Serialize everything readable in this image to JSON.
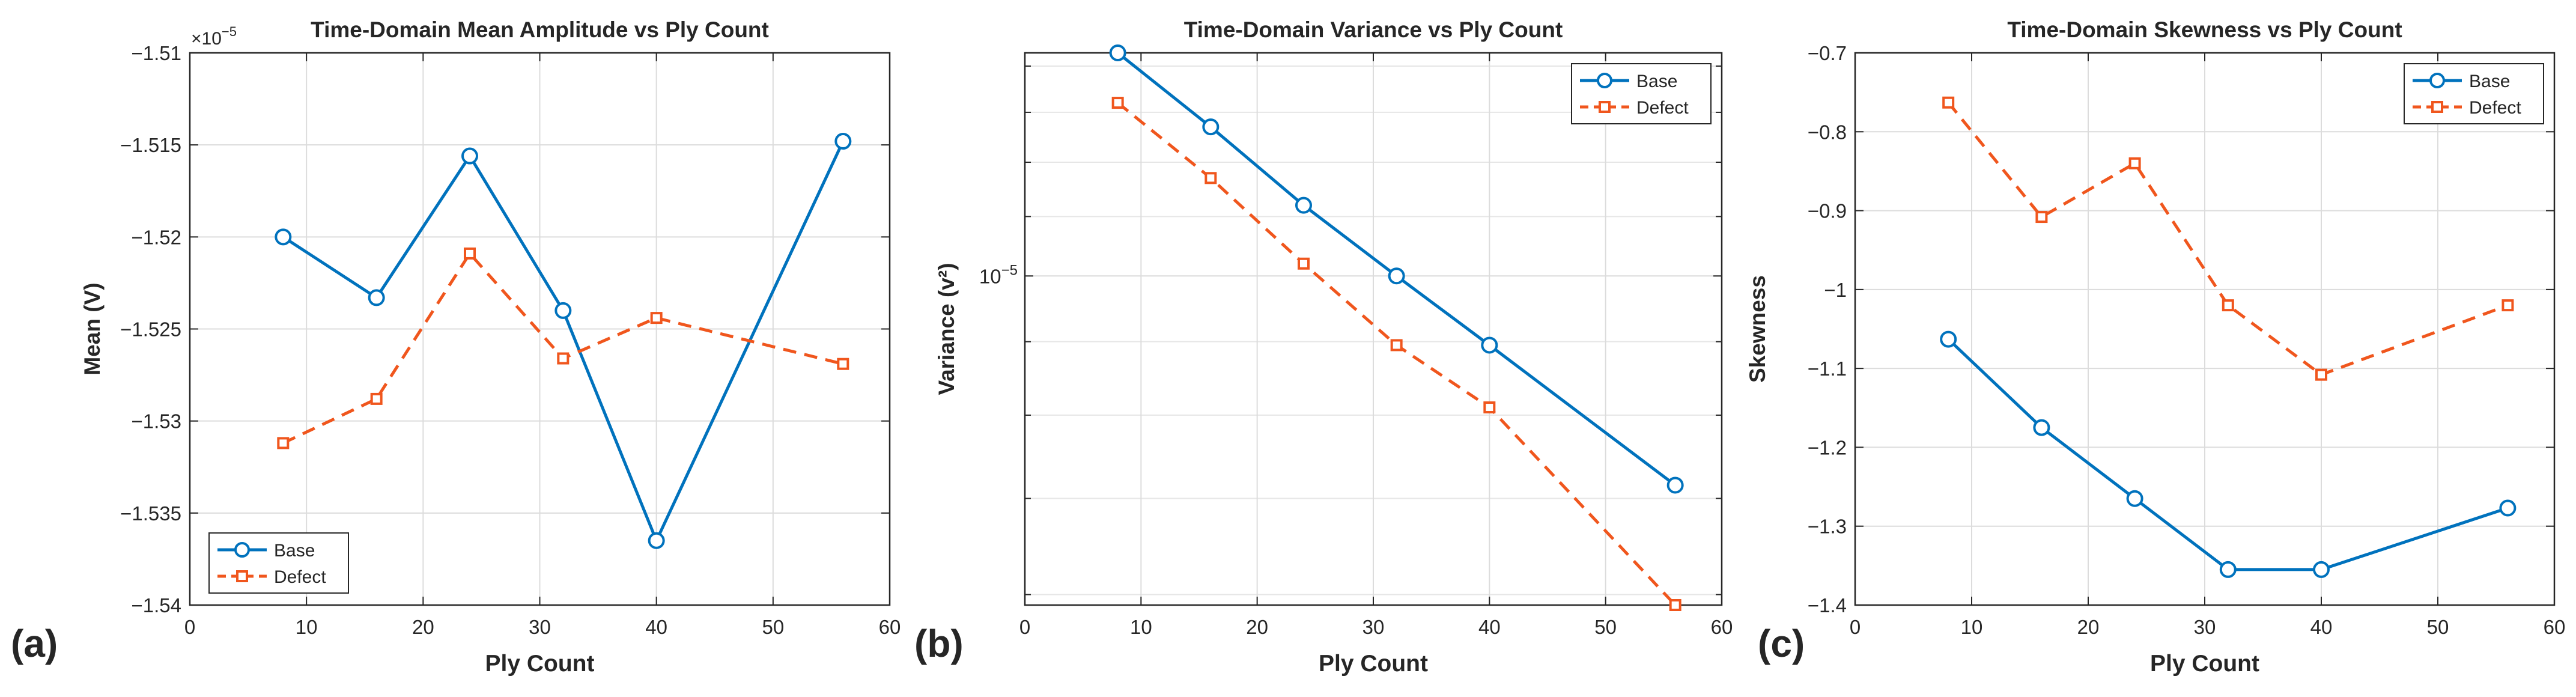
{
  "panel_labels": [
    "(a)",
    "(b)",
    "(c)"
  ],
  "chart_data": [
    {
      "type": "line",
      "title": "Time-Domain Mean Amplitude vs Ply Count",
      "xlabel": "Ply Count",
      "ylabel": "Mean (V)",
      "y_multiplier_label": "×10",
      "y_multiplier_exponent": "-5",
      "xlim": [
        0,
        60
      ],
      "ylim": [
        -1.54,
        -1.51
      ],
      "y_scale": "linear",
      "grid": true,
      "legend_position": "bottom-left",
      "x_ticks": [
        0,
        10,
        20,
        30,
        40,
        50,
        60
      ],
      "x_tick_labels": [
        "0",
        "10",
        "20",
        "30",
        "40",
        "50",
        "60"
      ],
      "y_ticks": [
        -1.51,
        -1.515,
        -1.52,
        -1.525,
        -1.53,
        -1.535,
        -1.54
      ],
      "y_tick_labels": [
        "-1.51",
        "-1.515",
        "-1.52",
        "-1.525",
        "-1.53",
        "-1.535",
        "-1.54"
      ],
      "series": [
        {
          "name": "Base",
          "color": "#0072BD",
          "style": "solid",
          "marker": "circle",
          "x": [
            8,
            16,
            24,
            32,
            40,
            56
          ],
          "values": [
            -1.52,
            -1.5233,
            -1.5156,
            -1.524,
            -1.5365,
            -1.5148
          ]
        },
        {
          "name": "Defect",
          "color": "#F0561D",
          "style": "dashed",
          "marker": "square",
          "x": [
            8,
            16,
            24,
            32,
            40,
            56
          ],
          "values": [
            -1.5312,
            -1.5288,
            -1.5209,
            -1.5266,
            -1.5244,
            -1.5269
          ]
        }
      ]
    },
    {
      "type": "line",
      "title": "Time-Domain Variance vs Ply Count",
      "xlabel": "Ply Count",
      "ylabel": "Variance (v²)",
      "xlim": [
        0,
        60
      ],
      "ylim": [
        5.9e-06,
        1.43e-05
      ],
      "y_scale": "log",
      "grid": true,
      "legend_position": "top-right",
      "x_ticks": [
        0,
        10,
        20,
        30,
        40,
        50,
        60
      ],
      "x_tick_labels": [
        "0",
        "10",
        "20",
        "30",
        "40",
        "50",
        "60"
      ],
      "y_ticks": [
        1e-05
      ],
      "y_tick_base": "10",
      "y_tick_exponent": "-5",
      "y_minor_ticks": [
        6e-06,
        7e-06,
        8e-06,
        9e-06,
        1.1e-05,
        1.2e-05,
        1.3e-05,
        1.4e-05
      ],
      "series": [
        {
          "name": "Base",
          "color": "#0072BD",
          "style": "solid",
          "marker": "circle",
          "x": [
            8,
            16,
            24,
            32,
            40,
            56
          ],
          "values": [
            1.43e-05,
            1.27e-05,
            1.12e-05,
            1e-05,
            8.95e-06,
            7.15e-06
          ]
        },
        {
          "name": "Defect",
          "color": "#F0561D",
          "style": "dashed",
          "marker": "square",
          "x": [
            8,
            16,
            24,
            32,
            40,
            56
          ],
          "values": [
            1.32e-05,
            1.17e-05,
            1.02e-05,
            8.95e-06,
            8.1e-06,
            5.9e-06
          ]
        }
      ]
    },
    {
      "type": "line",
      "title": "Time-Domain Skewness vs Ply Count",
      "xlabel": "Ply Count",
      "ylabel": "Skewness",
      "xlim": [
        0,
        60
      ],
      "ylim": [
        -1.4,
        -0.7
      ],
      "y_scale": "linear",
      "grid": true,
      "legend_position": "top-right",
      "x_ticks": [
        0,
        10,
        20,
        30,
        40,
        50,
        60
      ],
      "x_tick_labels": [
        "0",
        "10",
        "20",
        "30",
        "40",
        "50",
        "60"
      ],
      "y_ticks": [
        -0.7,
        -0.8,
        -0.9,
        -1.0,
        -1.1,
        -1.2,
        -1.3,
        -1.4
      ],
      "y_tick_labels": [
        "-0.7",
        "-0.8",
        "-0.9",
        "-1",
        "-1.1",
        "-1.2",
        "-1.3",
        "-1.4"
      ],
      "series": [
        {
          "name": "Base",
          "color": "#0072BD",
          "style": "solid",
          "marker": "circle",
          "x": [
            8,
            16,
            24,
            32,
            40,
            56
          ],
          "values": [
            -1.063,
            -1.175,
            -1.265,
            -1.355,
            -1.355,
            -1.277
          ]
        },
        {
          "name": "Defect",
          "color": "#F0561D",
          "style": "dashed",
          "marker": "square",
          "x": [
            8,
            16,
            24,
            32,
            40,
            56
          ],
          "values": [
            -0.763,
            -0.908,
            -0.84,
            -1.02,
            -1.108,
            -1.02
          ]
        }
      ]
    }
  ]
}
